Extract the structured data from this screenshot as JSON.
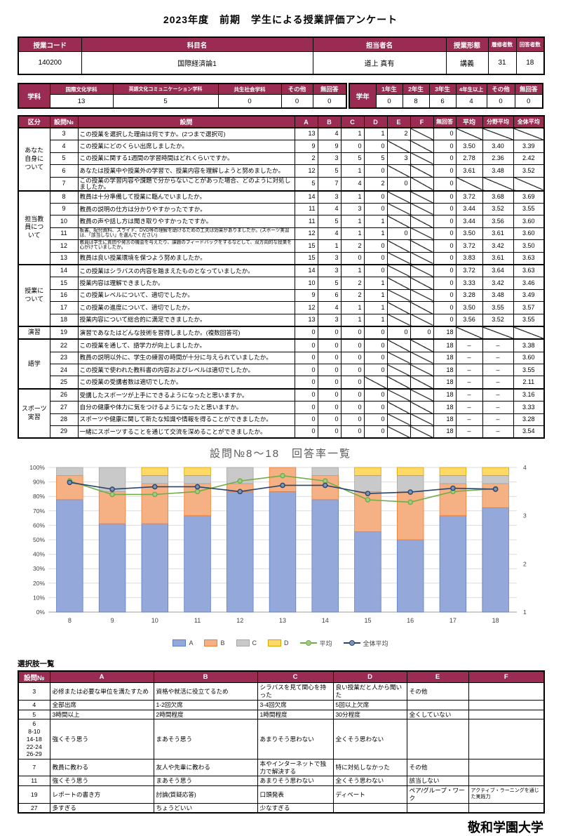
{
  "title": "2023年度　前期　学生による授業評価アンケート",
  "course_info": {
    "headers": [
      "授業コード",
      "科目名",
      "担当者名",
      "授業形態",
      "履修者数",
      "回答者数"
    ],
    "values": [
      "140200",
      "国際経済論1",
      "道上 真有",
      "講義",
      "31",
      "18"
    ]
  },
  "department": {
    "label": "学科",
    "headers": [
      "国際文化学科",
      "英語文化コミュニケーション学科",
      "共生社会学科",
      "その他",
      "無回答"
    ],
    "values": [
      "13",
      "5",
      "0",
      "0",
      "0"
    ]
  },
  "grade": {
    "label": "学年",
    "headers": [
      "1年生",
      "2年生",
      "3年生",
      "4年生以上",
      "その他",
      "無回答"
    ],
    "values": [
      "0",
      "8",
      "6",
      "4",
      "0",
      "0"
    ]
  },
  "survey_table": {
    "headers": [
      "区分",
      "設問№",
      "設問",
      "A",
      "B",
      "C",
      "D",
      "E",
      "F",
      "無回答",
      "平均",
      "分野平均",
      "全体平均"
    ],
    "sections": [
      {
        "label": "あなた\n自身に\nついて",
        "rows": [
          {
            "no": "3",
            "q": "この授業を選択した理由は何ですか。(2つまで選択可)",
            "cells": [
              "13",
              "4",
              "1",
              "1",
              "2",
              null,
              "0",
              null,
              null,
              null
            ]
          },
          {
            "no": "4",
            "q": "この授業にどのくらい出席しましたか。",
            "cells": [
              "9",
              "9",
              "0",
              "0",
              null,
              null,
              "0",
              "3.50",
              "3.40",
              "3.39"
            ]
          },
          {
            "no": "5",
            "q": "この授業に関する1週間の学習時間はどれくらいですか。",
            "cells": [
              "2",
              "3",
              "5",
              "5",
              "3",
              null,
              "0",
              "2.78",
              "2.36",
              "2.42"
            ]
          },
          {
            "no": "6",
            "q": "あなたは授業中や授業外の学習で、授業内容を理解しようと努めましたか。",
            "cells": [
              "12",
              "5",
              "1",
              "0",
              null,
              null,
              "0",
              "3.61",
              "3.48",
              "3.52"
            ]
          },
          {
            "no": "7",
            "q": "この授業の学習内容や課題で分からないことがあった場合、どのように対処しましたか。",
            "cells": [
              "5",
              "7",
              "4",
              "2",
              "0",
              null,
              "0",
              null,
              null,
              null
            ]
          }
        ]
      },
      {
        "label": "担当教\n員につ\nいて",
        "rows": [
          {
            "no": "8",
            "q": "教員は十分準備して授業に臨んでいましたか。",
            "cells": [
              "14",
              "3",
              "1",
              "0",
              null,
              null,
              "0",
              "3.72",
              "3.68",
              "3.69"
            ]
          },
          {
            "no": "9",
            "q": "教員の説明の仕方は分かりやすかったですか。",
            "cells": [
              "11",
              "4",
              "3",
              "0",
              null,
              null,
              "0",
              "3.44",
              "3.52",
              "3.55"
            ]
          },
          {
            "no": "10",
            "q": "教員の声や話し方は聞き取りやすかったですか。",
            "cells": [
              "11",
              "5",
              "1",
              "1",
              null,
              null,
              "0",
              "3.44",
              "3.56",
              "3.60"
            ]
          },
          {
            "no": "11",
            "q": "板書、配付資料、スライド、DVD等の理解を助けるための工夫は効果がありましたか。(スポーツ実習は、「該当しない」を選んでください)",
            "small": true,
            "cells": [
              "12",
              "4",
              "1",
              "1",
              "0",
              null,
              "0",
              "3.50",
              "3.61",
              "3.60"
            ]
          },
          {
            "no": "12",
            "q": "教員は学生に質問や発言の機会を与えたり、課題のフィードバックをするなどして、双方向的な授業を心がけていましたか。",
            "small": true,
            "cells": [
              "15",
              "1",
              "2",
              "0",
              null,
              null,
              "0",
              "3.72",
              "3.42",
              "3.50"
            ]
          },
          {
            "no": "13",
            "q": "教員は良い授業環境を保つよう努めましたか。",
            "cells": [
              "15",
              "3",
              "0",
              "0",
              null,
              null,
              "0",
              "3.83",
              "3.61",
              "3.63"
            ]
          }
        ]
      },
      {
        "label": "授業に\nついて",
        "rows": [
          {
            "no": "14",
            "q": "この授業はシラバスの内容を踏まえたものとなっていましたか。",
            "cells": [
              "14",
              "3",
              "1",
              "0",
              null,
              null,
              "0",
              "3.72",
              "3.64",
              "3.63"
            ]
          },
          {
            "no": "15",
            "q": "授業内容は理解できましたか。",
            "cells": [
              "10",
              "5",
              "2",
              "1",
              null,
              null,
              "0",
              "3.33",
              "3.42",
              "3.46"
            ]
          },
          {
            "no": "16",
            "q": "この授業レベルについて、適切でしたか。",
            "cells": [
              "9",
              "6",
              "2",
              "1",
              null,
              null,
              "0",
              "3.28",
              "3.48",
              "3.49"
            ]
          },
          {
            "no": "17",
            "q": "この授業の進度について、適切でしたか。",
            "cells": [
              "12",
              "4",
              "1",
              "1",
              null,
              null,
              "0",
              "3.50",
              "3.55",
              "3.57"
            ]
          },
          {
            "no": "18",
            "q": "授業内容について総合的に満足できましたか。",
            "cells": [
              "13",
              "3",
              "1",
              "1",
              null,
              null,
              "0",
              "3.56",
              "3.52",
              "3.55"
            ]
          }
        ]
      },
      {
        "label": "演習",
        "rows": [
          {
            "no": "19",
            "q": "演習であなたはどんな技術を習得しましたか。(複数回答可)",
            "cells": [
              "0",
              "0",
              "0",
              "0",
              "0",
              "0",
              "18",
              null,
              null,
              null
            ]
          }
        ]
      },
      {
        "label": "語学",
        "rows": [
          {
            "no": "22",
            "q": "この授業を通して、語学力が向上しましたか。",
            "cells": [
              "0",
              "0",
              "0",
              "0",
              null,
              null,
              "18",
              "–",
              "–",
              "3.38"
            ]
          },
          {
            "no": "23",
            "q": "教員の説明以外に、学生の練習の時間が十分に与えられていましたか。",
            "cells": [
              "0",
              "0",
              "0",
              "0",
              null,
              null,
              "18",
              "–",
              "–",
              "3.60"
            ]
          },
          {
            "no": "24",
            "q": "この授業で使われた教科書の内容およびレベルは適切でしたか。",
            "cells": [
              "0",
              "0",
              "0",
              "0",
              null,
              null,
              "18",
              "–",
              "–",
              "3.55"
            ]
          },
          {
            "no": "25",
            "q": "この授業の受講者数は適切でしたか。",
            "cells": [
              "0",
              "0",
              "0",
              null,
              null,
              null,
              "18",
              "–",
              "–",
              "2.11"
            ]
          }
        ]
      },
      {
        "label": "スポーツ\n実習",
        "rows": [
          {
            "no": "26",
            "q": "受講したスポーツが上手にできるようになったと思いますか。",
            "cells": [
              "0",
              "0",
              "0",
              "0",
              null,
              null,
              "18",
              "–",
              "–",
              "3.16"
            ]
          },
          {
            "no": "27",
            "q": "自分の健康や体力に気をつけるようになったと思いますか。",
            "cells": [
              "0",
              "0",
              "0",
              "0",
              null,
              null,
              "18",
              "–",
              "–",
              "3.33"
            ]
          },
          {
            "no": "28",
            "q": "スポーツや健康に関して新たな知識や情報を得ることができましたか。",
            "cells": [
              "0",
              "0",
              "0",
              "0",
              null,
              null,
              "18",
              "–",
              "–",
              "3.28"
            ]
          },
          {
            "no": "29",
            "q": "一緒にスポーツすることを通じて交流を深めることができましたか。",
            "cells": [
              "0",
              "0",
              "0",
              "0",
              null,
              null,
              "18",
              "–",
              "–",
              "3.54"
            ]
          }
        ]
      }
    ]
  },
  "chart_data": {
    "type": "bar",
    "subtype": "stacked-percent-with-lines",
    "title": "設問№8～18　回答率一覧",
    "categories": [
      "8",
      "9",
      "10",
      "11",
      "12",
      "13",
      "14",
      "15",
      "16",
      "17",
      "18"
    ],
    "respondents": 18,
    "series": [
      {
        "name": "A",
        "type": "bar",
        "counts": [
          14,
          11,
          11,
          12,
          15,
          15,
          14,
          10,
          9,
          12,
          13
        ],
        "fill": "#95a8da",
        "stroke": "#5b7ec7"
      },
      {
        "name": "B",
        "type": "bar",
        "counts": [
          3,
          4,
          5,
          4,
          1,
          3,
          3,
          5,
          6,
          4,
          3
        ],
        "fill": "#f5b183",
        "stroke": "#ed7d31"
      },
      {
        "name": "C",
        "type": "bar",
        "counts": [
          1,
          3,
          1,
          1,
          2,
          0,
          1,
          2,
          2,
          1,
          1
        ],
        "fill": "#c9c9c9",
        "stroke": "#a6a6a6"
      },
      {
        "name": "D",
        "type": "bar",
        "counts": [
          0,
          0,
          1,
          1,
          0,
          0,
          0,
          1,
          1,
          1,
          1
        ],
        "fill": "#ffd966",
        "stroke": "#d4a400"
      },
      {
        "name": "平均",
        "type": "line",
        "values": [
          3.72,
          3.44,
          3.44,
          3.5,
          3.72,
          3.83,
          3.72,
          3.33,
          3.28,
          3.5,
          3.56
        ],
        "color": "#70ad47",
        "marker_fill": "#a5c98b"
      },
      {
        "name": "全体平均",
        "type": "line",
        "values": [
          3.69,
          3.55,
          3.6,
          3.6,
          3.5,
          3.63,
          3.63,
          3.46,
          3.49,
          3.57,
          3.55
        ],
        "color": "#27456e",
        "marker_fill": "#8093b1"
      }
    ],
    "left_axis": {
      "min": 0,
      "max": 100,
      "step": 10,
      "format": "percent"
    },
    "right_axis": {
      "min": 1,
      "max": 4,
      "labels": [
        "1",
        "2",
        "3",
        "4"
      ]
    },
    "legend_position": "bottom",
    "grid": true
  },
  "choices_table": {
    "title": "選択肢一覧",
    "headers": [
      "設問№",
      "A",
      "B",
      "C",
      "D",
      "E",
      "F"
    ],
    "rows": [
      {
        "no": "3",
        "cells": [
          "必修または必要な単位を満たすため",
          "資格や就活に役立てるため",
          "シラバスを見て関心を持った",
          "良い授業だと人から聞いた",
          "その他",
          ""
        ]
      },
      {
        "no": "4",
        "cells": [
          "全部出席",
          "1-2回欠席",
          "3-4回欠席",
          "5回以上欠席",
          "",
          ""
        ]
      },
      {
        "no": "5",
        "cells": [
          "3時間以上",
          "2時間程度",
          "1時間程度",
          "30分程度",
          "全くしていない",
          ""
        ]
      },
      {
        "no": "6\n8-10\n14-18\n22-24\n26-29",
        "cells": [
          "強くそう思う",
          "まあそう思う",
          "あまりそう思わない",
          "全くそう思わない",
          "",
          ""
        ]
      },
      {
        "no": "7",
        "cells": [
          "教員に教わる",
          "友人や先輩に教わる",
          "本やインターネットで独力で解決する",
          "特に対処しなかった",
          "その他",
          ""
        ]
      },
      {
        "no": "11",
        "cells": [
          "強くそう思う",
          "まあそう思う",
          "あまりそう思わない",
          "全くそう思わない",
          "該当しない",
          ""
        ]
      },
      {
        "no": "19",
        "cells": [
          "レポートの書き方",
          "討論(質疑応答)",
          "口頭発表",
          "ディベート",
          "ペア/グループ・ワーク",
          {
            "t": "アクティブ・ラーニングを通じた実践力",
            "s": true
          }
        ]
      },
      {
        "no": "27",
        "cells": [
          "多すぎる",
          "ちょうどいい",
          "少なすぎる",
          "",
          "",
          ""
        ]
      }
    ]
  },
  "footer": "敬和学園大学"
}
